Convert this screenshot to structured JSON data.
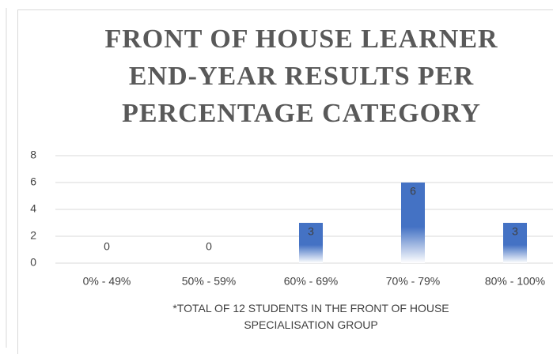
{
  "chart_data": {
    "type": "bar",
    "title": "FRONT OF HOUSE LEARNER END-YEAR RESULTS PER PERCENTAGE CATEGORY",
    "x_label": "*TOTAL OF 12 STUDENTS IN THE FRONT OF HOUSE SPECIALISATION GROUP",
    "categories": [
      "0% - 49%",
      "50% - 59%",
      "60% - 69%",
      "70% - 79%",
      "80% - 100%"
    ],
    "values": [
      0,
      0,
      3,
      6,
      3
    ],
    "color": "#4472c4",
    "ylim": [
      0,
      8
    ],
    "yticks": [
      0,
      2,
      4,
      6,
      8
    ],
    "grid": true
  }
}
